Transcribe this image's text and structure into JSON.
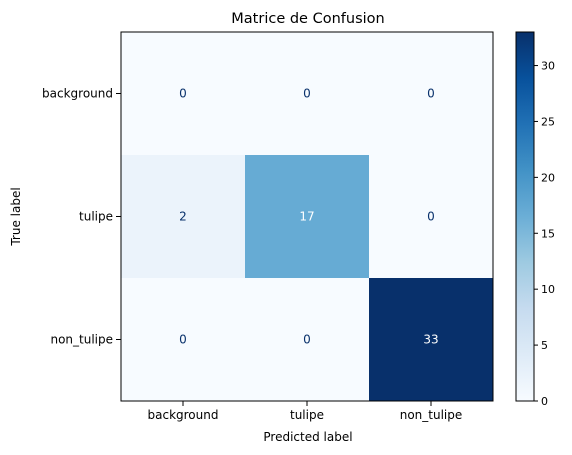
{
  "chart_data": {
    "type": "heatmap",
    "title": "Matrice de Confusion",
    "xlabel": "Predicted label",
    "ylabel": "True label",
    "x_categories": [
      "background",
      "tulipe",
      "non_tulipe"
    ],
    "y_categories": [
      "background",
      "tulipe",
      "non_tulipe"
    ],
    "values": [
      [
        0,
        0,
        0
      ],
      [
        2,
        17,
        0
      ],
      [
        0,
        0,
        33
      ]
    ],
    "colormap": "Blues",
    "colorbar": {
      "range": [
        0,
        33
      ],
      "ticks": [
        0,
        5,
        10,
        15,
        20,
        25,
        30
      ]
    },
    "colors": {
      "low": "#f7fbff",
      "high": "#08306b",
      "text_dark": "#08306b",
      "text_light": "#ffffff"
    }
  }
}
